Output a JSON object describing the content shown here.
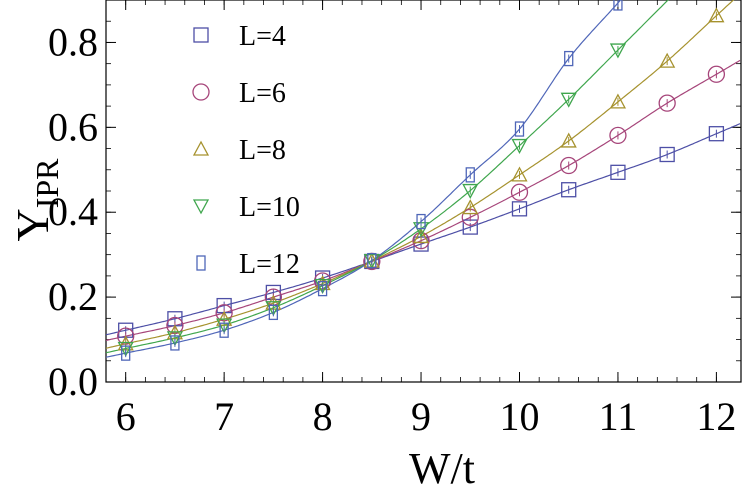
{
  "chart_data": {
    "type": "scatter",
    "title": "",
    "xlabel": "W/t",
    "ylabel_main": "Y",
    "ylabel_sub": "IPR",
    "xlim": [
      5.8,
      12.25
    ],
    "ylim": [
      0.0,
      0.9
    ],
    "xticks": [
      6,
      7,
      8,
      9,
      10,
      11,
      12
    ],
    "yticks": [
      0.0,
      0.2,
      0.4,
      0.6,
      0.8
    ],
    "ytick_labels": [
      "0.0",
      "0.2",
      "0.4",
      "0.6",
      "0.8"
    ],
    "legend_position": "top-left",
    "grid": false,
    "series": [
      {
        "name": "L=4",
        "marker": "square",
        "color": "#4d4fa6",
        "x": [
          6,
          6.5,
          7,
          7.5,
          8,
          8.5,
          9,
          9.5,
          10,
          10.5,
          11,
          11.5,
          12
        ],
        "y": [
          0.122,
          0.149,
          0.18,
          0.211,
          0.245,
          0.284,
          0.325,
          0.365,
          0.408,
          0.453,
          0.494,
          0.536,
          0.585
        ]
      },
      {
        "name": "L=6",
        "marker": "circle",
        "color": "#a6457a",
        "x": [
          6,
          6.5,
          7,
          7.5,
          8,
          8.5,
          9,
          9.5,
          10,
          10.5,
          11,
          11.5,
          12
        ],
        "y": [
          0.108,
          0.133,
          0.163,
          0.2,
          0.238,
          0.284,
          0.333,
          0.388,
          0.447,
          0.51,
          0.581,
          0.657,
          0.725
        ]
      },
      {
        "name": "L=8",
        "marker": "triangle-up",
        "color": "#a6922e",
        "x": [
          6,
          6.5,
          7,
          7.5,
          8,
          8.5,
          9,
          9.5,
          10,
          10.5,
          11,
          11.5,
          12
        ],
        "y": [
          0.09,
          0.116,
          0.148,
          0.186,
          0.232,
          0.285,
          0.343,
          0.411,
          0.488,
          0.568,
          0.66,
          0.756,
          0.863
        ]
      },
      {
        "name": "L=10",
        "marker": "triangle-down",
        "color": "#3fa64d",
        "x": [
          6,
          6.5,
          7,
          7.5,
          8,
          8.5,
          9,
          9.5,
          10,
          10.5,
          11
        ],
        "y": [
          0.079,
          0.104,
          0.134,
          0.175,
          0.227,
          0.286,
          0.361,
          0.451,
          0.557,
          0.666,
          0.782
        ]
      },
      {
        "name": "L=12",
        "marker": "narrow-rect",
        "color": "#4f66b8",
        "x": [
          6,
          6.5,
          7,
          7.5,
          8,
          8.5,
          9,
          9.5,
          10,
          10.5,
          11
        ],
        "y": [
          0.068,
          0.092,
          0.122,
          0.164,
          0.22,
          0.286,
          0.378,
          0.488,
          0.596,
          0.762,
          0.893
        ]
      }
    ]
  }
}
